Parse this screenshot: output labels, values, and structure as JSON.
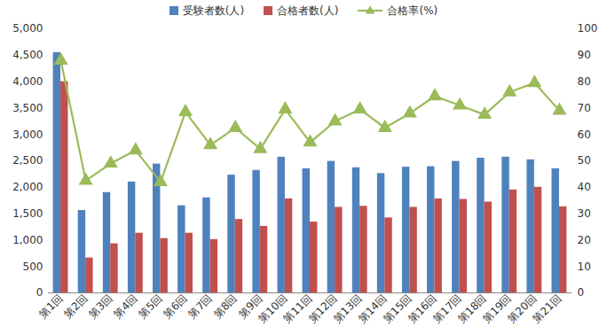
{
  "chart_data": {
    "type": "bar",
    "legend": "top",
    "grid": false,
    "categories": [
      "第1回",
      "第2回",
      "第3回",
      "第4回",
      "第5回",
      "第6回",
      "第7回",
      "第8回",
      "第9回",
      "第10回",
      "第11回",
      "第12回",
      "第13回",
      "第14回",
      "第15回",
      "第16回",
      "第17回",
      "第18回",
      "第19回",
      "第20回",
      "第21回"
    ],
    "series": [
      {
        "name": "受験者数(人)",
        "type": "bar",
        "color": "#4f81bd",
        "values": [
          4550,
          1560,
          1900,
          2100,
          2440,
          1650,
          1800,
          2230,
          2320,
          2570,
          2350,
          2490,
          2370,
          2260,
          2380,
          2390,
          2490,
          2550,
          2570,
          2520,
          2350
        ]
      },
      {
        "name": "合格者数(人)",
        "type": "bar",
        "color": "#c0504d",
        "values": [
          4000,
          660,
          930,
          1130,
          1030,
          1130,
          1010,
          1390,
          1260,
          1780,
          1340,
          1620,
          1640,
          1420,
          1620,
          1780,
          1770,
          1720,
          1950,
          2000,
          1630
        ]
      },
      {
        "name": "合格率(%)",
        "type": "line",
        "axis": "y2",
        "color": "#9bbb59",
        "marker": "triangle",
        "values": [
          88,
          42.5,
          49,
          54,
          42,
          68.5,
          56,
          62.5,
          54.5,
          69.5,
          57,
          65,
          69.5,
          62.5,
          68,
          74.5,
          71,
          67.5,
          76,
          79.5,
          69
        ]
      }
    ],
    "ylim": [
      0,
      5000
    ],
    "yticks": [
      0,
      500,
      {
        "value": 1000,
        "label": "1,000"
      },
      {
        "value": 1500,
        "label": "1,500"
      },
      {
        "value": 2000,
        "label": "2,000"
      },
      {
        "value": 2500,
        "label": "2,500"
      },
      {
        "value": 3000,
        "label": "3,000"
      },
      {
        "value": 3500,
        "label": "3,500"
      },
      {
        "value": 4000,
        "label": "4,000"
      },
      {
        "value": 4500,
        "label": "4,500"
      },
      {
        "value": 5000,
        "label": "5,000"
      }
    ],
    "y2lim": [
      0,
      100
    ],
    "y2ticks": [
      0,
      10,
      20,
      30,
      40,
      50,
      60,
      70,
      80,
      90,
      100
    ]
  }
}
